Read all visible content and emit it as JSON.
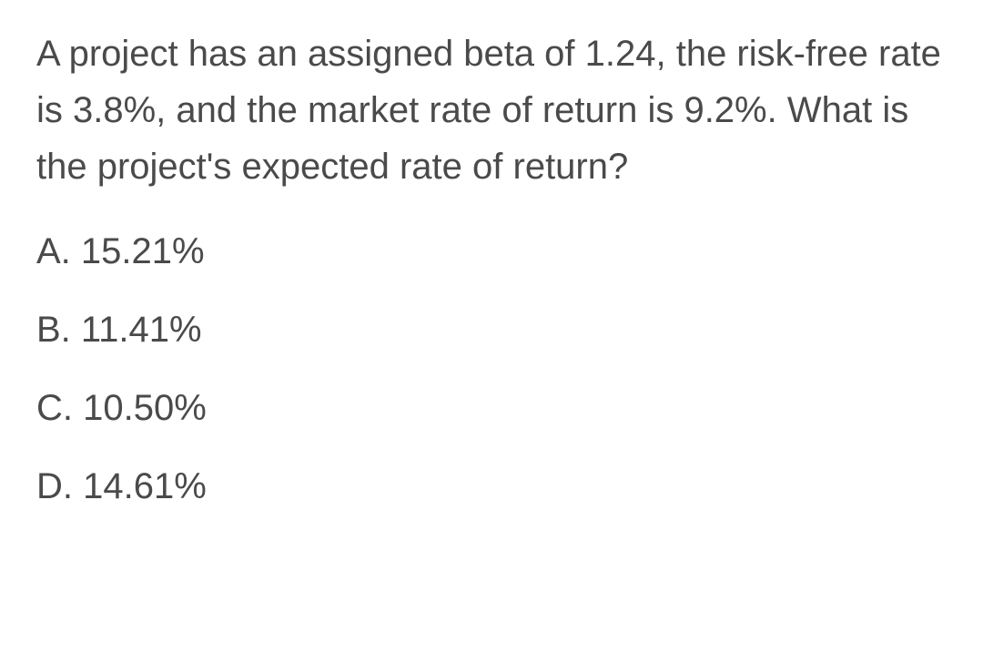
{
  "question": {
    "text": "A project has an assigned beta of 1.24, the risk-free rate is 3.8%, and the market rate of return is 9.2%. What is the project's expected rate of return?",
    "text_color": "#4a4a4a",
    "font_size": 40,
    "background_color": "#ffffff"
  },
  "options": [
    {
      "label": "A. 15.21%"
    },
    {
      "label": "B. 11.41%"
    },
    {
      "label": "C. 10.50%"
    },
    {
      "label": "D. 14.61%"
    }
  ]
}
